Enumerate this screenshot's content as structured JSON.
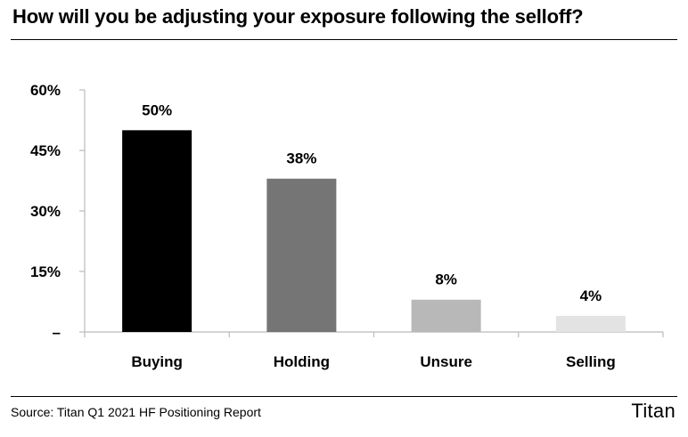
{
  "title": "How will you be adjusting your exposure following the selloff?",
  "source": "Source: Titan Q1 2021 HF Positioning Report",
  "brand": "Titan",
  "chart_data": {
    "type": "bar",
    "categories": [
      "Buying",
      "Holding",
      "Unsure",
      "Selling"
    ],
    "values": [
      50,
      38,
      8,
      4
    ],
    "value_labels": [
      "50%",
      "38%",
      "8%",
      "4%"
    ],
    "colors": [
      "#000000",
      "#757575",
      "#b8b8b8",
      "#e3e3e3"
    ],
    "ylim": [
      0,
      60
    ],
    "yticks": [
      0,
      15,
      30,
      45,
      60
    ],
    "ytick_labels": [
      "–",
      "15%",
      "30%",
      "45%",
      "60%"
    ],
    "grid": false,
    "legend": "none"
  }
}
